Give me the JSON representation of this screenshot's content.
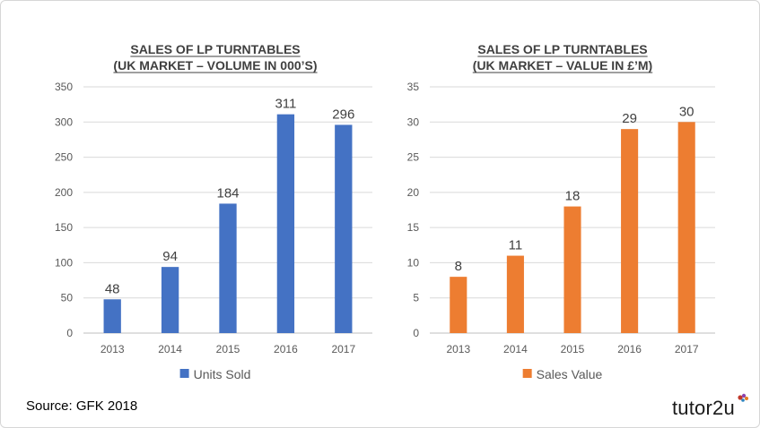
{
  "chart_data": [
    {
      "type": "bar",
      "title": "SALES OF LP TURNTABLES",
      "subtitle": "(UK MARKET – VOLUME IN 000’S)",
      "categories": [
        "2013",
        "2014",
        "2015",
        "2016",
        "2017"
      ],
      "series": [
        {
          "name": "Units Sold",
          "values": [
            48,
            94,
            184,
            311,
            296
          ],
          "color": "#4472c4"
        }
      ],
      "ylim": [
        0,
        350
      ],
      "yticks": [
        "0",
        "50",
        "100",
        "150",
        "200",
        "250",
        "300",
        "350"
      ],
      "data_labels": [
        "48",
        "94",
        "184",
        "311",
        "296"
      ],
      "grid": true,
      "legend": "bottom"
    },
    {
      "type": "bar",
      "title": "SALES OF LP TURNTABLES",
      "subtitle": "(UK MARKET – VALUE IN £’M)",
      "categories": [
        "2013",
        "2014",
        "2015",
        "2016",
        "2017"
      ],
      "series": [
        {
          "name": "Sales Value",
          "values": [
            8,
            11,
            18,
            29,
            30
          ],
          "color": "#ed7d31"
        }
      ],
      "ylim": [
        0,
        35
      ],
      "yticks": [
        "0",
        "5",
        "10",
        "15",
        "20",
        "25",
        "30",
        "35"
      ],
      "data_labels": [
        "8",
        "11",
        "18",
        "29",
        "30"
      ],
      "grid": true,
      "legend": "bottom"
    }
  ],
  "footer": {
    "source": "Source: GFK 2018",
    "brand": "tutor2u"
  }
}
